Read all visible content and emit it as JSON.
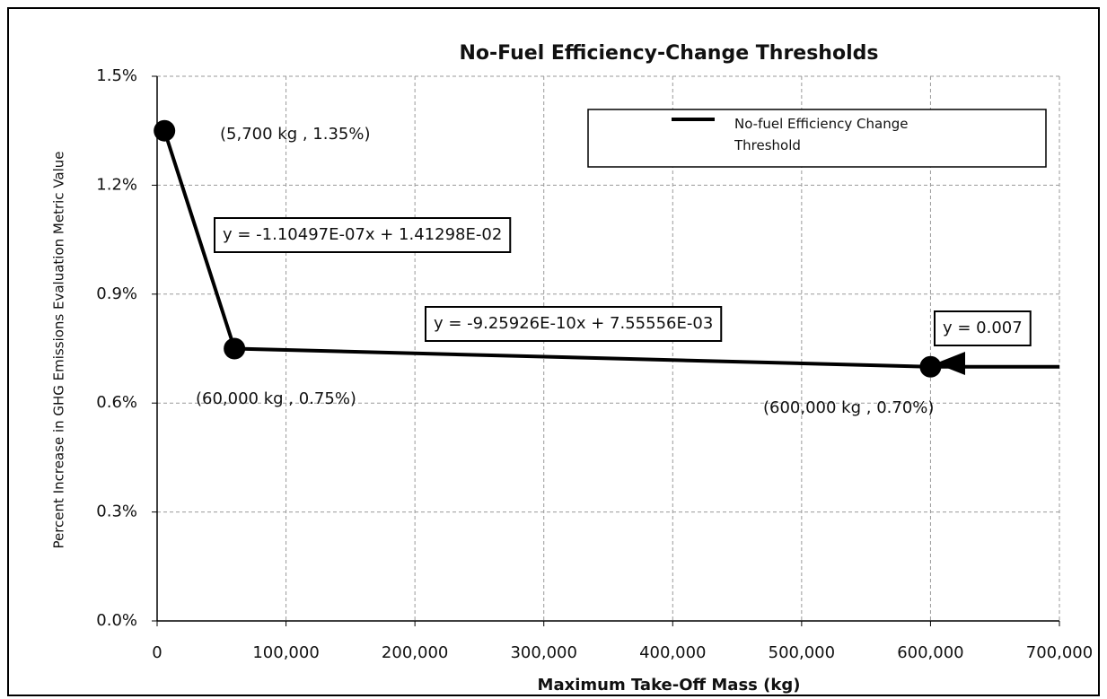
{
  "chart_data": {
    "type": "line",
    "title": "No-Fuel Efficiency-Change Thresholds",
    "x_label": "Maximum Take-Off Mass (kg)",
    "y_label": "Percent Increase in GHG Emissions Evaluation Metric Value",
    "x": [
      5700,
      60000,
      600000,
      700000
    ],
    "series": [
      {
        "name": "No-fuel Efficiency Change Threshold",
        "color": "#000000",
        "values": [
          1.35,
          0.75,
          0.7,
          0.7
        ]
      }
    ],
    "xlim": [
      0,
      700000
    ],
    "xticks": [
      0,
      {
        "value": 100000,
        "label": "100,000"
      },
      {
        "value": 200000,
        "label": "200,000"
      },
      {
        "value": 300000,
        "label": "300,000"
      },
      {
        "value": 400000,
        "label": "400,000"
      },
      {
        "value": 500000,
        "label": "500,000"
      },
      {
        "value": 600000,
        "label": "600,000"
      },
      {
        "value": 700000,
        "label": "700,000"
      }
    ],
    "ylim": [
      0,
      1.5
    ],
    "yticks": [
      {
        "value": 0,
        "label": "0.0%"
      },
      {
        "value": 0.3,
        "label": "0.3%"
      },
      {
        "value": 0.6,
        "label": "0.6%"
      },
      {
        "value": 0.9,
        "label": "0.9%"
      },
      {
        "value": 1.2,
        "label": "1.2%"
      },
      {
        "value": 1.5,
        "label": "1.5%"
      }
    ],
    "grid": true,
    "point_labels": [
      "(5,700 kg , 1.35%)",
      "(60,000 kg , 0.75%)",
      "(600,000 kg , 0.70%)"
    ],
    "equations": [
      "y = -1.10497E-07x + 1.41298E-02",
      "y = -9.25926E-10x + 7.55556E-03",
      "y = 0.007"
    ]
  }
}
